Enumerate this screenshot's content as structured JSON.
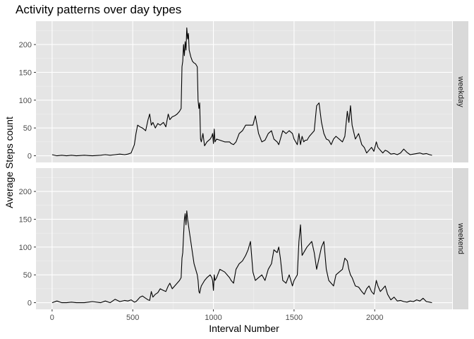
{
  "chart_data": {
    "type": "line",
    "title": "Activity patterns over day types",
    "xlabel": "Interval Number",
    "ylabel": "Average Steps count",
    "xlim": [
      -100,
      2480
    ],
    "ylim": [
      -12,
      242
    ],
    "x_ticks": [
      0,
      500,
      1000,
      1500,
      2000
    ],
    "y_ticks": [
      0,
      50,
      100,
      150,
      200
    ],
    "grid": true,
    "legend": "none",
    "line_color": "#000000",
    "panel_background": "#e5e5e5",
    "strip_background": "#d9d9d9",
    "panels": [
      {
        "name": "weekday",
        "x": [
          0,
          30,
          60,
          90,
          120,
          150,
          200,
          250,
          300,
          330,
          360,
          390,
          420,
          450,
          470,
          490,
          510,
          520,
          530,
          545,
          560,
          580,
          595,
          605,
          615,
          625,
          640,
          655,
          670,
          690,
          705,
          720,
          730,
          745,
          760,
          775,
          790,
          800,
          805,
          810,
          815,
          820,
          825,
          830,
          835,
          840,
          845,
          850,
          860,
          870,
          880,
          890,
          900,
          905,
          910,
          915,
          920,
          925,
          935,
          945,
          960,
          980,
          990,
          995,
          1000,
          1005,
          1010,
          1020,
          1040,
          1070,
          1100,
          1110,
          1125,
          1140,
          1160,
          1180,
          1200,
          1215,
          1230,
          1245,
          1260,
          1280,
          1300,
          1320,
          1340,
          1360,
          1375,
          1395,
          1405,
          1415,
          1430,
          1450,
          1470,
          1490,
          1500,
          1510,
          1520,
          1530,
          1540,
          1550,
          1560,
          1570,
          1580,
          1595,
          1610,
          1625,
          1640,
          1655,
          1670,
          1685,
          1700,
          1715,
          1730,
          1745,
          1760,
          1780,
          1800,
          1815,
          1830,
          1840,
          1850,
          1860,
          1880,
          1900,
          1920,
          1935,
          1950,
          1965,
          1980,
          1995,
          2010,
          2020,
          2035,
          2050,
          2065,
          2080,
          2100,
          2120,
          2140,
          2160,
          2180,
          2200,
          2220,
          2240,
          2260,
          2280,
          2300,
          2320,
          2340,
          2355
        ],
        "y": [
          2,
          0,
          1,
          0,
          1,
          0,
          1,
          0,
          1,
          2,
          1,
          2,
          3,
          2,
          3,
          5,
          20,
          40,
          55,
          52,
          50,
          45,
          65,
          75,
          55,
          60,
          50,
          58,
          55,
          60,
          52,
          75,
          65,
          70,
          72,
          75,
          80,
          85,
          160,
          170,
          200,
          180,
          205,
          190,
          230,
          210,
          220,
          190,
          178,
          170,
          167,
          165,
          160,
          100,
          85,
          95,
          30,
          25,
          40,
          18,
          25,
          30,
          35,
          40,
          22,
          48,
          25,
          30,
          28,
          25,
          25,
          22,
          20,
          25,
          40,
          45,
          55,
          55,
          55,
          55,
          72,
          40,
          25,
          28,
          40,
          45,
          30,
          25,
          20,
          30,
          45,
          40,
          45,
          40,
          30,
          25,
          20,
          40,
          20,
          35,
          25,
          28,
          28,
          35,
          40,
          45,
          90,
          95,
          60,
          40,
          30,
          28,
          20,
          30,
          35,
          30,
          25,
          35,
          80,
          60,
          90,
          55,
          30,
          40,
          20,
          15,
          5,
          10,
          15,
          8,
          25,
          15,
          10,
          5,
          10,
          8,
          3,
          4,
          2,
          5,
          12,
          6,
          2,
          3,
          4,
          5,
          3,
          4,
          2,
          1
        ],
        "y_data_note_removed": true
      },
      {
        "name": "weekend",
        "x": [
          0,
          30,
          60,
          90,
          120,
          150,
          200,
          250,
          300,
          330,
          360,
          390,
          420,
          450,
          470,
          490,
          510,
          520,
          530,
          545,
          560,
          580,
          595,
          605,
          615,
          625,
          640,
          655,
          670,
          690,
          705,
          720,
          730,
          745,
          760,
          775,
          790,
          800,
          805,
          810,
          815,
          820,
          825,
          830,
          835,
          840,
          845,
          850,
          860,
          870,
          880,
          890,
          900,
          905,
          910,
          915,
          920,
          925,
          935,
          945,
          960,
          980,
          990,
          995,
          1000,
          1005,
          1010,
          1020,
          1040,
          1070,
          1100,
          1110,
          1125,
          1140,
          1160,
          1180,
          1200,
          1215,
          1230,
          1245,
          1260,
          1280,
          1300,
          1320,
          1340,
          1360,
          1375,
          1395,
          1405,
          1415,
          1430,
          1450,
          1470,
          1490,
          1500,
          1510,
          1520,
          1530,
          1540,
          1550,
          1560,
          1570,
          1580,
          1595,
          1610,
          1625,
          1640,
          1655,
          1670,
          1685,
          1700,
          1715,
          1730,
          1745,
          1760,
          1780,
          1800,
          1815,
          1830,
          1840,
          1850,
          1860,
          1880,
          1900,
          1920,
          1935,
          1950,
          1965,
          1980,
          1995,
          2010,
          2020,
          2035,
          2050,
          2065,
          2080,
          2100,
          2120,
          2140,
          2160,
          2180,
          2200,
          2220,
          2240,
          2260,
          2280,
          2300,
          2320,
          2340,
          2355
        ],
        "y": [
          0,
          3,
          0,
          0,
          1,
          0,
          0,
          2,
          0,
          3,
          0,
          6,
          2,
          4,
          3,
          5,
          1,
          2,
          5,
          10,
          12,
          8,
          5,
          4,
          20,
          10,
          15,
          18,
          25,
          22,
          20,
          30,
          35,
          25,
          30,
          35,
          40,
          45,
          80,
          90,
          120,
          150,
          160,
          140,
          165,
          150,
          140,
          130,
          110,
          90,
          70,
          60,
          50,
          40,
          20,
          17,
          25,
          30,
          35,
          40,
          45,
          50,
          45,
          40,
          22,
          50,
          40,
          45,
          60,
          55,
          45,
          40,
          35,
          60,
          70,
          75,
          85,
          95,
          110,
          55,
          40,
          45,
          50,
          40,
          60,
          70,
          95,
          90,
          100,
          80,
          40,
          35,
          50,
          30,
          40,
          45,
          50,
          110,
          140,
          85,
          90,
          95,
          100,
          105,
          110,
          90,
          60,
          80,
          100,
          110,
          60,
          40,
          35,
          30,
          50,
          55,
          60,
          80,
          75,
          60,
          50,
          45,
          30,
          28,
          20,
          15,
          25,
          30,
          20,
          15,
          40,
          30,
          20,
          25,
          30,
          15,
          5,
          10,
          3,
          4,
          2,
          1,
          3,
          2,
          5,
          3,
          8,
          2,
          1,
          0
        ]
      }
    ]
  }
}
